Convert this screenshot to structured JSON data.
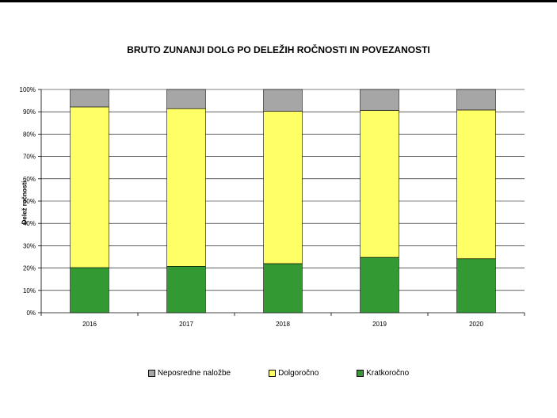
{
  "chart_data": {
    "type": "bar",
    "stacked": true,
    "title": "BRUTO ZUNANJI DOLG PO DELEŽIH ROČNOSTI IN POVEZANOSTI",
    "ylabel": "Delež ročnosti",
    "xlabel": "",
    "ylim": [
      0,
      100
    ],
    "yticks": [
      "0%",
      "10%",
      "20%",
      "30%",
      "40%",
      "50%",
      "60%",
      "70%",
      "80%",
      "90%",
      "100%"
    ],
    "categories": [
      "2016",
      "2017",
      "2018",
      "2019",
      "2020"
    ],
    "series": [
      {
        "name": "Kratkoročno",
        "color": "#339933",
        "values": [
          20.2,
          20.8,
          22.0,
          24.8,
          24.2
        ]
      },
      {
        "name": "Dolgoročno",
        "color": "#ffff66",
        "values": [
          72.0,
          70.6,
          68.2,
          65.8,
          66.6
        ]
      },
      {
        "name": "Neposredne naložbe",
        "color": "#a6a6a6",
        "values": [
          7.8,
          8.6,
          9.8,
          9.4,
          9.2
        ]
      }
    ],
    "legend_order": [
      "Neposredne naložbe",
      "Dolgoročno",
      "Kratkoročno"
    ],
    "grid": true,
    "legend_position": "bottom"
  }
}
